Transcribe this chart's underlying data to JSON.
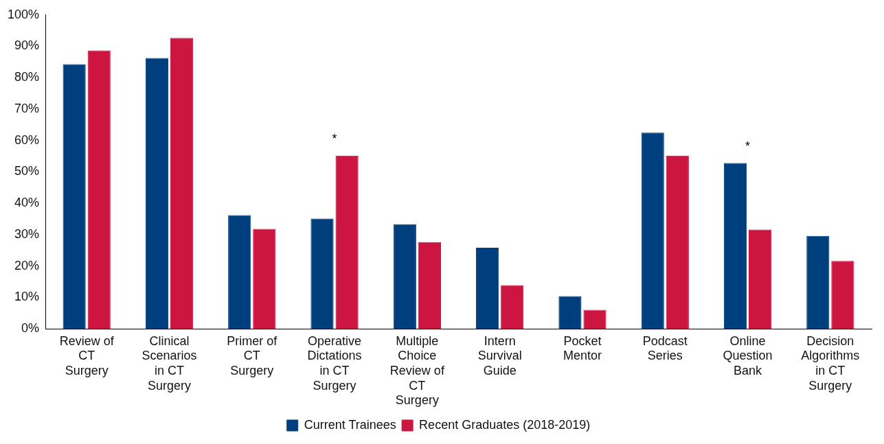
{
  "chart_data": {
    "type": "bar",
    "categories": [
      "Review of CT Surgery",
      "Clinical Scenarios in CT Surgery",
      "Primer of CT Surgery",
      "Operative Dictations in CT Surgery",
      "Multiple Choice Review of CT Surgery",
      "Intern Survival Guide",
      "Pocket Mentor",
      "Podcast Series",
      "Online Question Bank",
      "Decision Algorithms in CT Surgery"
    ],
    "series": [
      {
        "name": "Current Trainees",
        "color": "#003f7d",
        "values": [
          84.3,
          86.3,
          36.2,
          35.1,
          33.3,
          25.8,
          10.4,
          62.5,
          52.8,
          29.6
        ]
      },
      {
        "name": "Recent Graduates (2018-2019)",
        "color": "#cc1540",
        "values": [
          88.7,
          92.7,
          31.8,
          55.2,
          27.6,
          13.9,
          6.0,
          55.2,
          31.6,
          21.6
        ]
      }
    ],
    "ylim": [
      0,
      100
    ],
    "yticks": [
      {
        "value": 0,
        "label": "0%"
      },
      {
        "value": 10,
        "label": "10%"
      },
      {
        "value": 20,
        "label": "20%"
      },
      {
        "value": 30,
        "label": "30%"
      },
      {
        "value": 40,
        "label": "40%"
      },
      {
        "value": 50,
        "label": "50%"
      },
      {
        "value": 60,
        "label": "60%"
      },
      {
        "value": 70,
        "label": "70%"
      },
      {
        "value": 80,
        "label": "80%"
      },
      {
        "value": 90,
        "label": "90%"
      },
      {
        "value": 100,
        "label": "100%"
      }
    ],
    "annotations": [
      {
        "text": "*",
        "x": "Operative Dictations in CT Surgery",
        "y": 55.2
      },
      {
        "text": "*",
        "x": "Online Question Bank",
        "y": 52.8
      }
    ],
    "grid": false,
    "legend": "bottom"
  }
}
